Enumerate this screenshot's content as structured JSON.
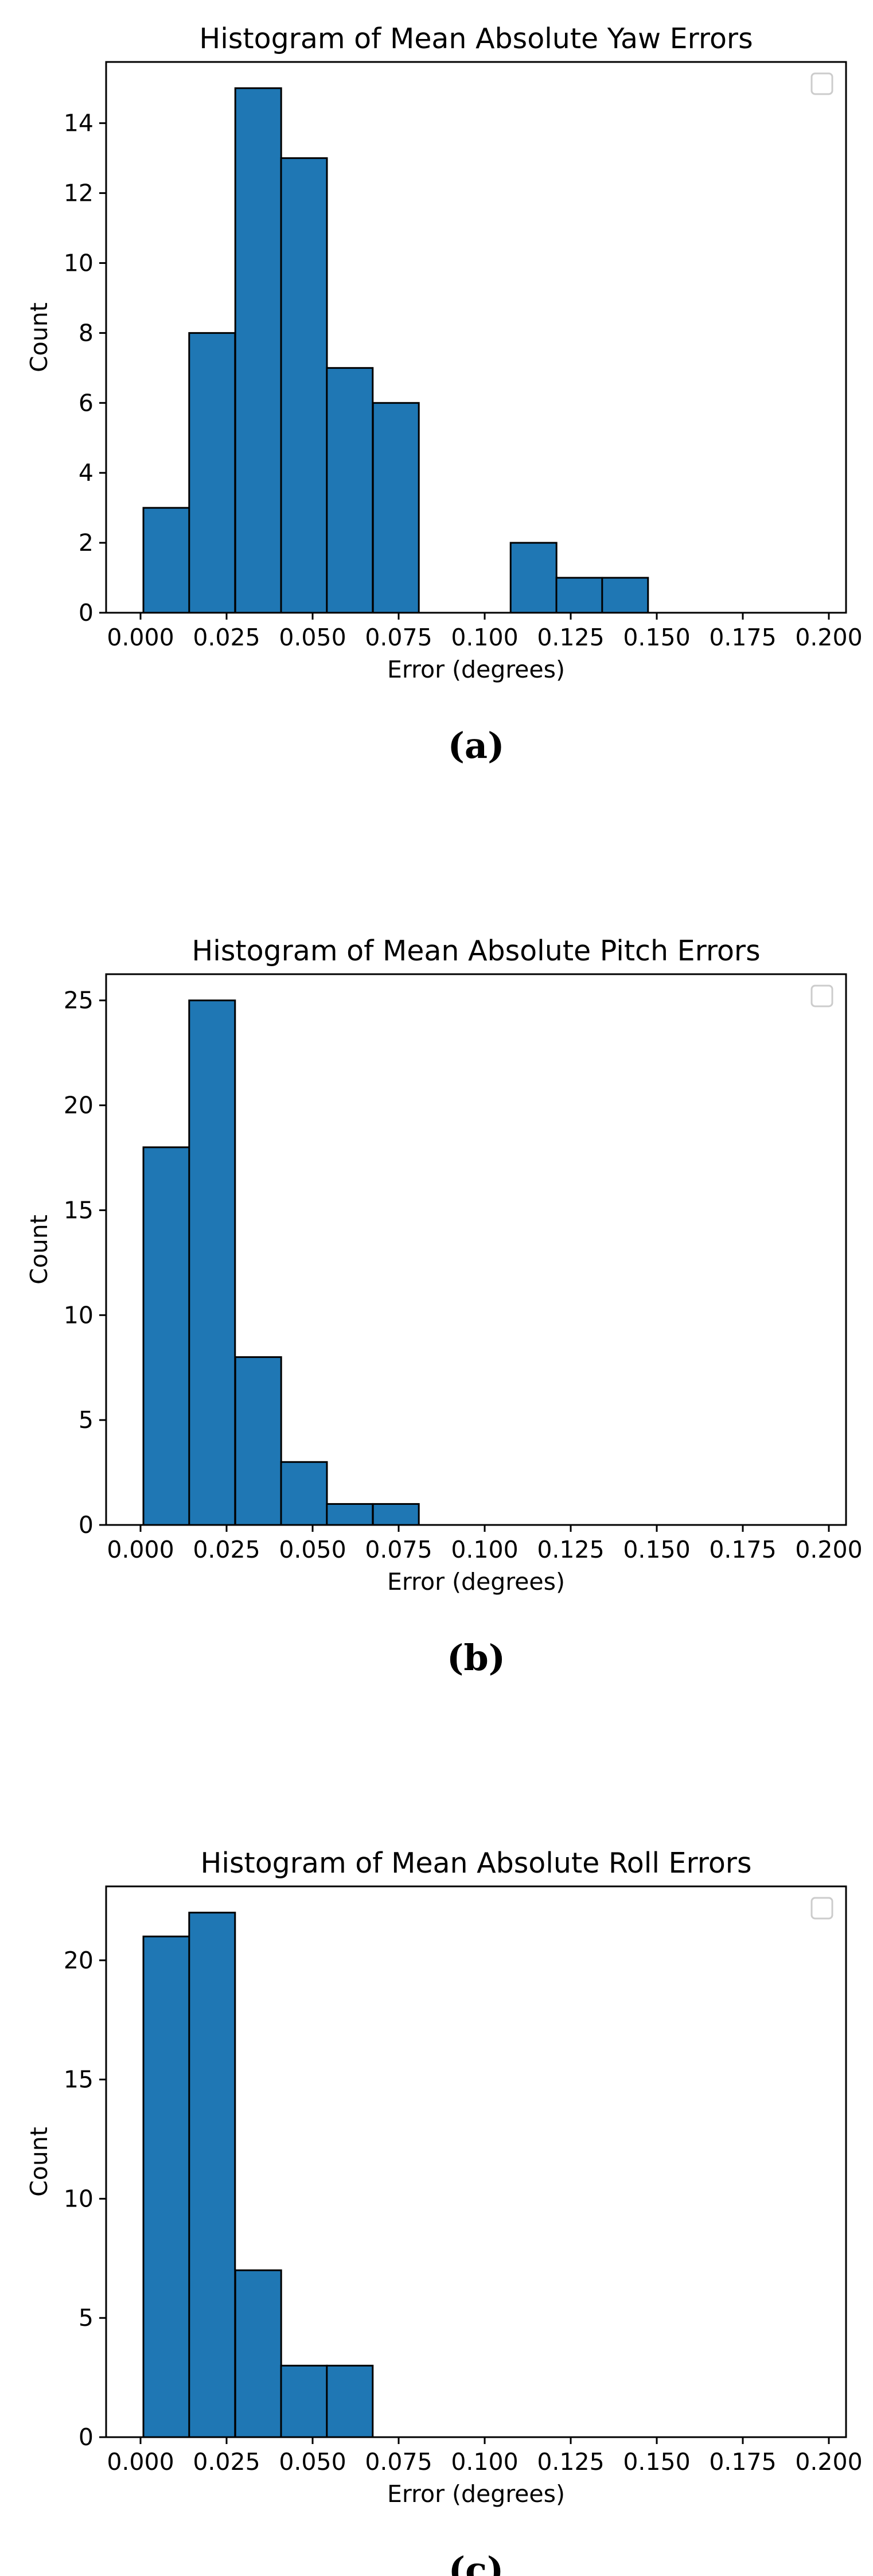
{
  "chart_data": [
    {
      "type": "bar",
      "title": "Histogram of Mean Absolute Yaw Errors",
      "xlabel": "Error (degrees)",
      "ylabel": "Count",
      "xlim": [
        -0.01,
        0.205
      ],
      "ylim": [
        0,
        15.75
      ],
      "xticks": [
        "0.000",
        "0.025",
        "0.050",
        "0.075",
        "0.100",
        "0.125",
        "0.150",
        "0.175",
        "0.200"
      ],
      "yticks": [
        "0",
        "2",
        "4",
        "6",
        "8",
        "10",
        "12",
        "14"
      ],
      "bin_width": 0.01333,
      "bins": [
        {
          "x": 0.0075,
          "count": 3
        },
        {
          "x": 0.0208,
          "count": 8
        },
        {
          "x": 0.0342,
          "count": 15
        },
        {
          "x": 0.0475,
          "count": 13
        },
        {
          "x": 0.0608,
          "count": 7
        },
        {
          "x": 0.0742,
          "count": 6
        },
        {
          "x": 0.1142,
          "count": 2
        },
        {
          "x": 0.1275,
          "count": 1
        },
        {
          "x": 0.1408,
          "count": 1
        }
      ],
      "caption": "(a)",
      "legend": "empty, top-right"
    },
    {
      "type": "bar",
      "title": "Histogram of Mean Absolute Pitch Errors",
      "xlabel": "Error (degrees)",
      "ylabel": "Count",
      "xlim": [
        -0.01,
        0.205
      ],
      "ylim": [
        0,
        26.25
      ],
      "xticks": [
        "0.000",
        "0.025",
        "0.050",
        "0.075",
        "0.100",
        "0.125",
        "0.150",
        "0.175",
        "0.200"
      ],
      "yticks": [
        "0",
        "5",
        "10",
        "15",
        "20",
        "25"
      ],
      "bin_width": 0.01333,
      "bins": [
        {
          "x": 0.0075,
          "count": 18
        },
        {
          "x": 0.0208,
          "count": 25
        },
        {
          "x": 0.0342,
          "count": 8
        },
        {
          "x": 0.0475,
          "count": 3
        },
        {
          "x": 0.0608,
          "count": 1
        },
        {
          "x": 0.0742,
          "count": 1
        }
      ],
      "caption": "(b)",
      "legend": "empty, top-right"
    },
    {
      "type": "bar",
      "title": "Histogram of Mean Absolute Roll Errors",
      "xlabel": "Error (degrees)",
      "ylabel": "Count",
      "xlim": [
        -0.01,
        0.205
      ],
      "ylim": [
        0,
        23.1
      ],
      "xticks": [
        "0.000",
        "0.025",
        "0.050",
        "0.075",
        "0.100",
        "0.125",
        "0.150",
        "0.175",
        "0.200"
      ],
      "yticks": [
        "0",
        "5",
        "10",
        "15",
        "20"
      ],
      "bin_width": 0.01333,
      "bins": [
        {
          "x": 0.0075,
          "count": 21
        },
        {
          "x": 0.0208,
          "count": 22
        },
        {
          "x": 0.0342,
          "count": 7
        },
        {
          "x": 0.0475,
          "count": 3
        },
        {
          "x": 0.0608,
          "count": 3
        }
      ],
      "caption": "(c)",
      "legend": "empty, top-right"
    }
  ],
  "colors": {
    "bar_fill": "#1f77b4",
    "bar_edge": "#000000",
    "axis": "#000000",
    "legend_box": "#cccccc"
  }
}
